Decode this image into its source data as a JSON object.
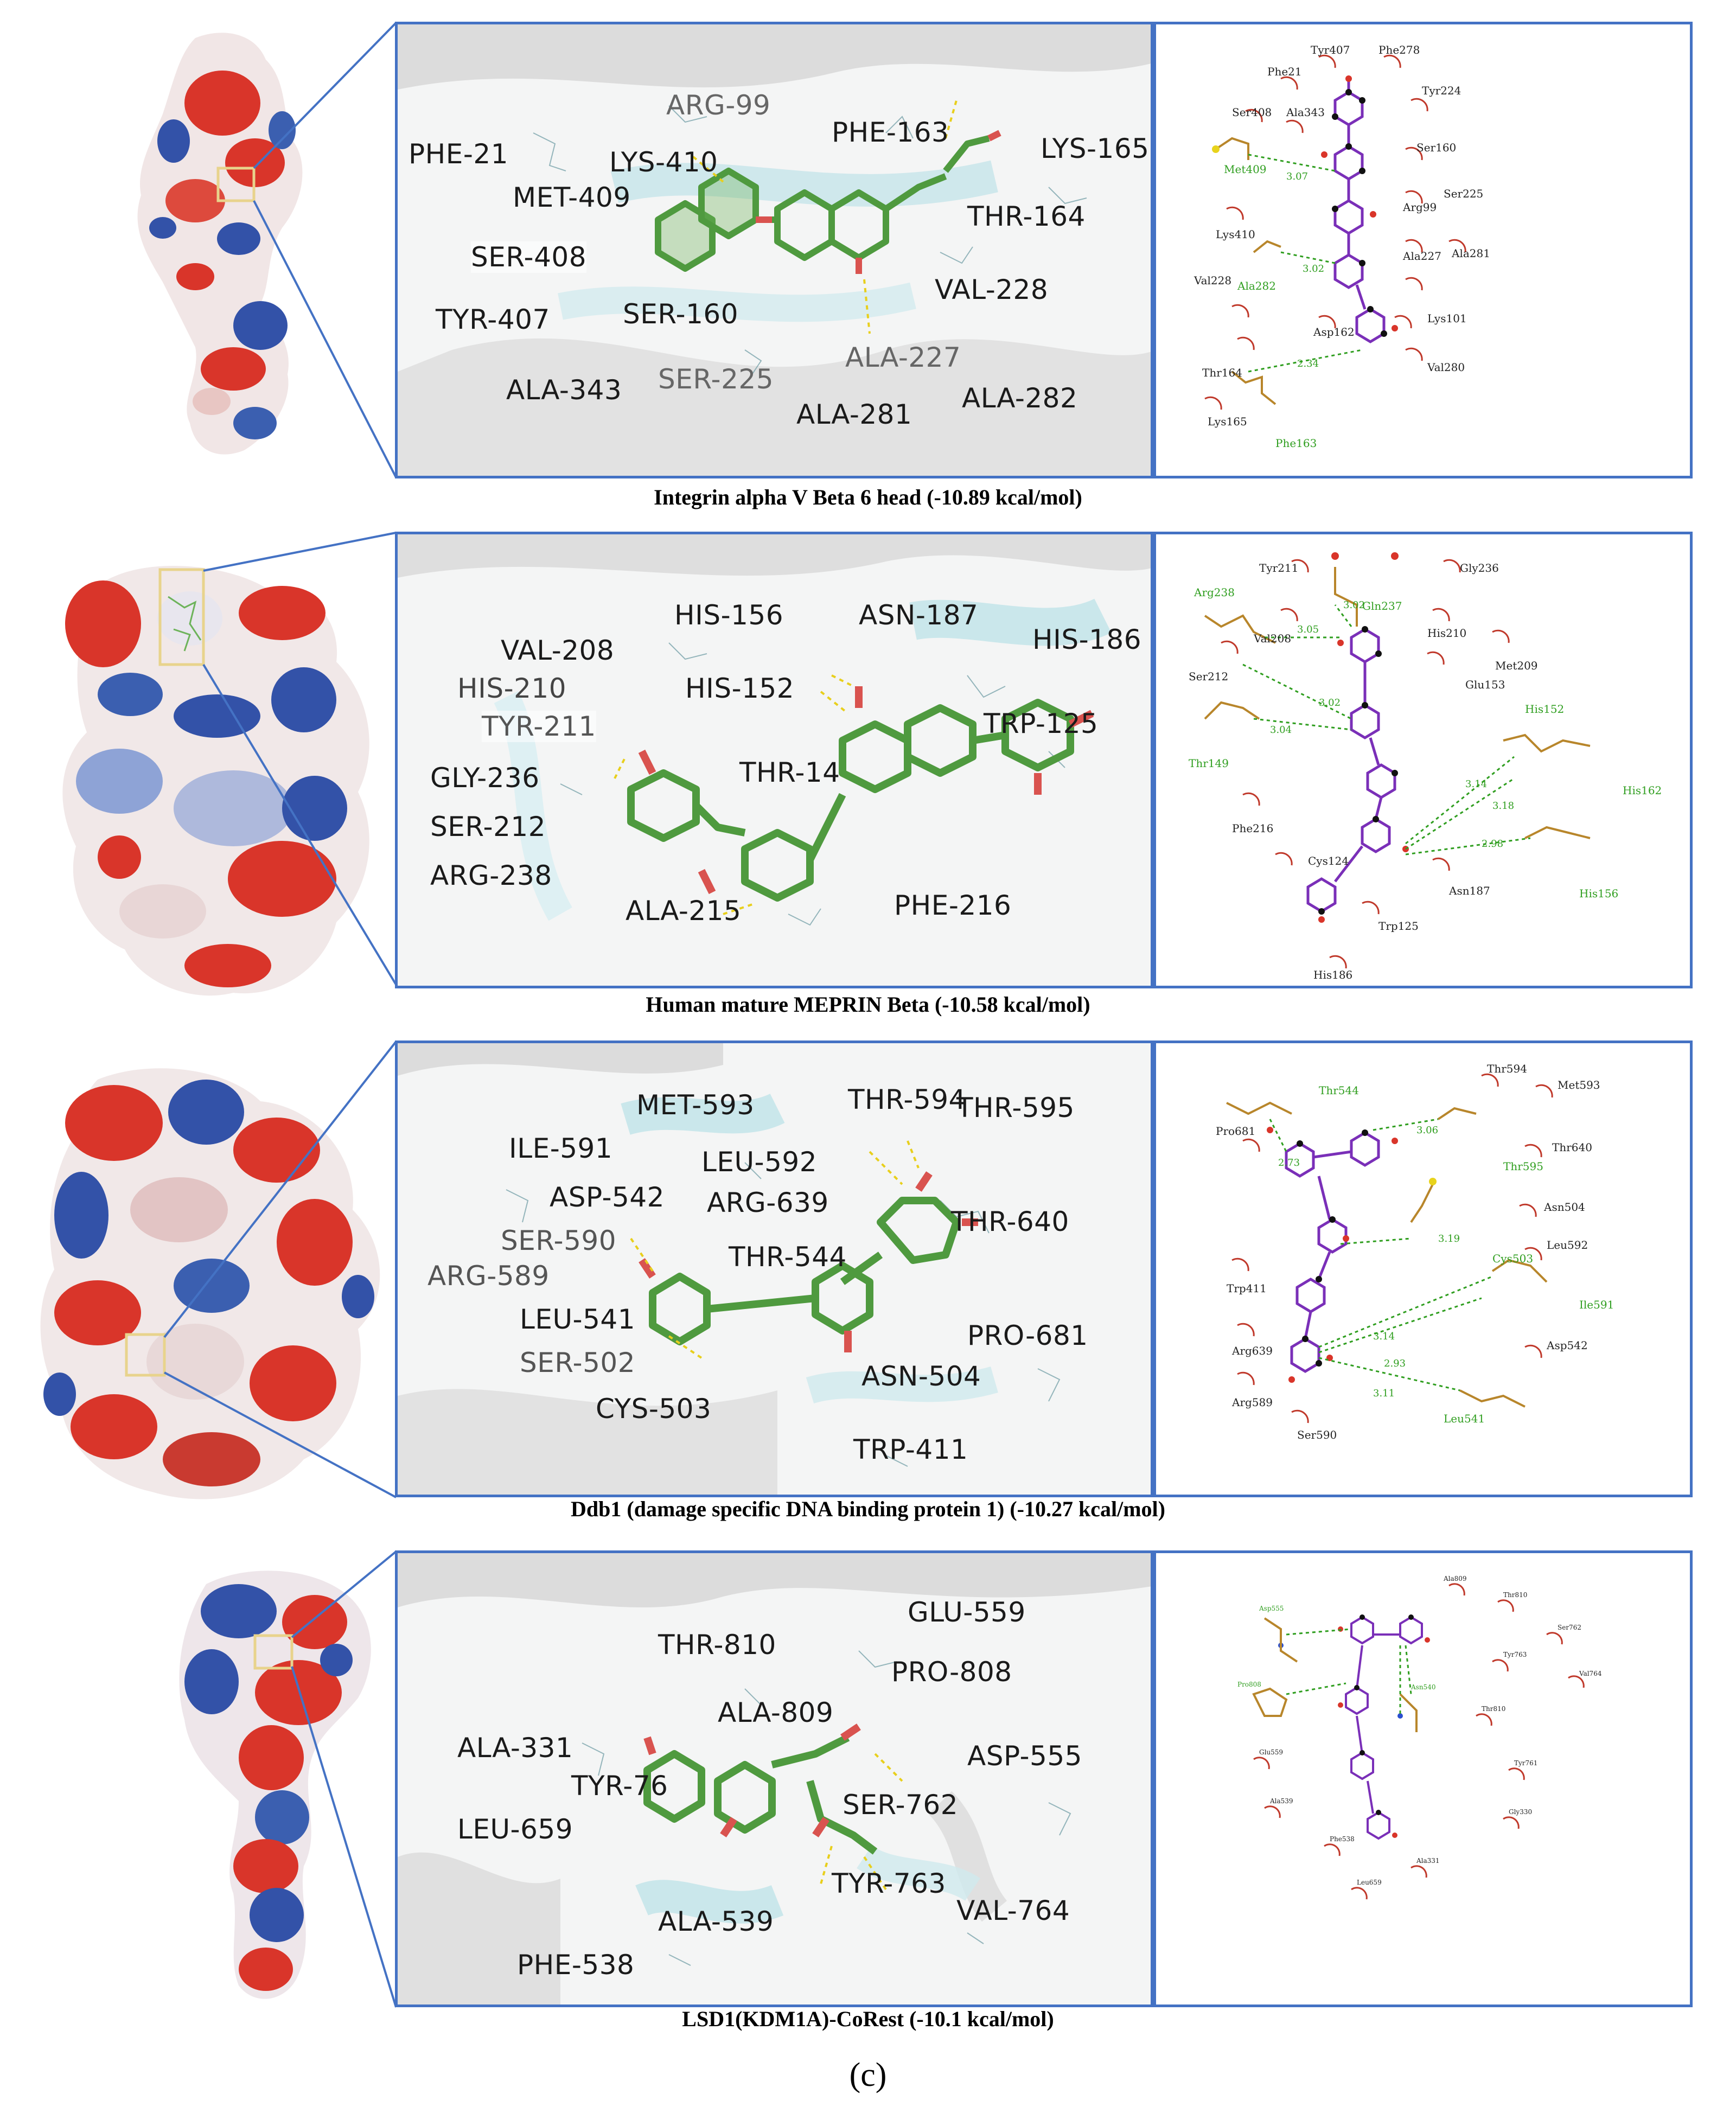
{
  "panels": [
    {
      "caption": "Integrin alpha V Beta 6 head (-10.89 kcal/mol)",
      "residues": [
        "PHE-21",
        "ARG-99",
        "LYS-410",
        "MET-409",
        "PHE-163",
        "LYS-165",
        "THR-164",
        "SER-408",
        "TYR-407",
        "SER-160",
        "VAL-228",
        "ALA-227",
        "SER-225",
        "ALA-343",
        "ALA-281",
        "ALA-282"
      ],
      "ligplot": {
        "hydrophobic": [
          "Phe21",
          "Tyr407",
          "Phe278",
          "Tyr224",
          "Ser408",
          "Ala343",
          "Ser160",
          "Arg99",
          "Ser225",
          "Lys410",
          "Ala227",
          "Ala281",
          "Val228",
          "Asp162",
          "Lys101",
          "Thr164",
          "Val280",
          "Lys165"
        ],
        "hbond_residues": [
          "Met409",
          "Ala282",
          "Phe163"
        ],
        "distances": [
          "3.07",
          "3.02",
          "2.34"
        ]
      }
    },
    {
      "caption": "Human mature MEPRIN Beta (-10.58 kcal/mol)",
      "residues": [
        "HIS-156",
        "ASN-187",
        "VAL-208",
        "HIS-186",
        "HIS-210",
        "HIS-152",
        "TRP-125",
        "TYR-211",
        "GLY-236",
        "THR-14",
        "SER-212",
        "ARG-238",
        "ALA-215",
        "PHE-216"
      ],
      "ligplot": {
        "hydrophobic": [
          "Tyr211",
          "Gly236",
          "Val208",
          "His210",
          "Met209",
          "Ser212",
          "Glu153",
          "Phe216",
          "Cys124",
          "Asn187",
          "Trp125",
          "His186"
        ],
        "hbond_residues": [
          "Arg238",
          "Gln237",
          "His152",
          "Thr149",
          "His162",
          "His156"
        ],
        "distances": [
          "3.05",
          "3.02",
          "3.02",
          "3.04",
          "3.14",
          "3.18",
          "2.98"
        ]
      }
    },
    {
      "caption": "Ddb1 (damage specific DNA binding protein 1) (-10.27 kcal/mol)",
      "residues": [
        "MET-593",
        "THR-594",
        "THR-595",
        "ILE-591",
        "LEU-592",
        "ASP-542",
        "ARG-639",
        "THR-640",
        "SER-590",
        "THR-544",
        "ARG-589",
        "LEU-541",
        "PRO-681",
        "SER-502",
        "ASN-504",
        "CYS-503",
        "TRP-411"
      ],
      "ligplot": {
        "hydrophobic": [
          "Thr594",
          "Met593",
          "Pro681",
          "Thr640",
          "Asn504",
          "Leu592",
          "Trp411",
          "Arg639",
          "Asp542",
          "Arg589",
          "Ser590"
        ],
        "hbond_residues": [
          "Thr544",
          "Thr595",
          "Cys503",
          "Ile591",
          "Leu541"
        ],
        "distances": [
          "2.73",
          "3.06",
          "3.19",
          "3.14",
          "2.93",
          "3.11"
        ]
      }
    },
    {
      "caption": "LSD1(KDM1A)-CoRest  (-10.1 kcal/mol)",
      "residues": [
        "THR-810",
        "GLU-559",
        "PRO-808",
        "ALA-809",
        "ALA-331",
        "ASP-555",
        "TYR-76",
        "SER-762",
        "LEU-659",
        "TYR-763",
        "ALA-539",
        "VAL-764",
        "PHE-538"
      ],
      "ligplot": {
        "hydrophobic": [
          "Ala809",
          "Thr810",
          "Ser762",
          "Tyr763",
          "Val764",
          "Thr810",
          "Glu559",
          "Tyr761",
          "Ala539",
          "Gly330",
          "Phe538",
          "Ala331",
          "Leu659"
        ],
        "hbond_residues": [
          "Asp555",
          "Pro808",
          "Asn540"
        ],
        "distances": []
      }
    }
  ],
  "figure_label": "(c)",
  "colors": {
    "frame": "#4472c4",
    "ligand": "#5aa348",
    "hbond": "#d9c21a",
    "ligbond": "#7a2fb8",
    "green_label": "#2f9e1f",
    "arc": "#c0392b"
  }
}
